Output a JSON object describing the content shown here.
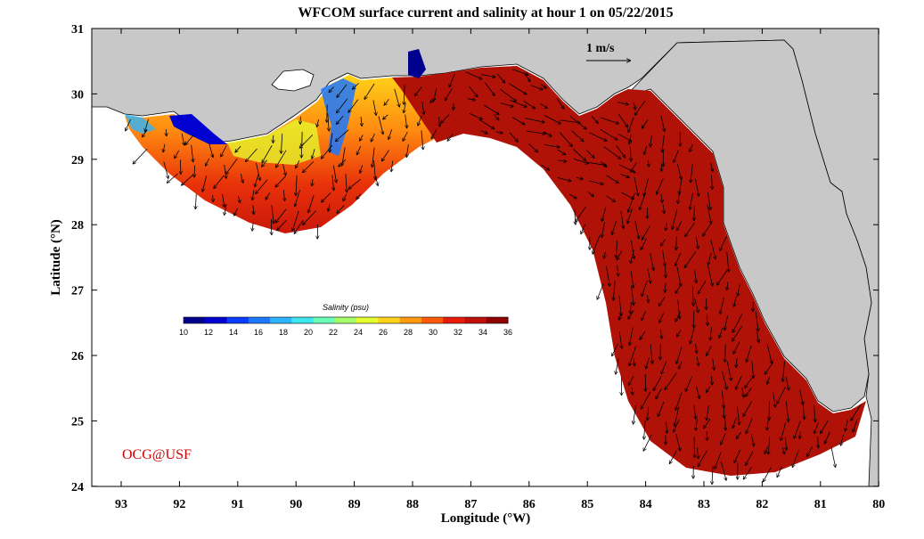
{
  "title": "WFCOM surface current and salinity at hour 1 on 05/22/2015",
  "xlabel": "Longitude (°W)",
  "ylabel": "Latitude (°N)",
  "x_ticks": [
    "93",
    "92",
    "91",
    "90",
    "89",
    "88",
    "87",
    "86",
    "85",
    "84",
    "83",
    "82",
    "81",
    "80"
  ],
  "y_ticks": [
    "31",
    "30",
    "29",
    "28",
    "27",
    "26",
    "25",
    "24"
  ],
  "colorbar": {
    "title": "Salinity (psu)",
    "ticks": [
      "10",
      "12",
      "14",
      "16",
      "18",
      "20",
      "22",
      "24",
      "26",
      "28",
      "30",
      "32",
      "34",
      "36"
    ],
    "colors": [
      "#00008f",
      "#0000d0",
      "#0a3cff",
      "#1c78ff",
      "#2cb4ff",
      "#3ce8ee",
      "#6affb8",
      "#a6ff6a",
      "#e4ff2e",
      "#ffd21a",
      "#ff9a10",
      "#ff5a08",
      "#e81c0a",
      "#c0100a",
      "#8f0000"
    ]
  },
  "scale_arrow_label": "1 m/s",
  "credit": "OCG@USF",
  "colors": {
    "land": "#c8c8c8",
    "ocean_model": "#b01208",
    "frame": "#000000",
    "credit": "#cc0000"
  }
}
